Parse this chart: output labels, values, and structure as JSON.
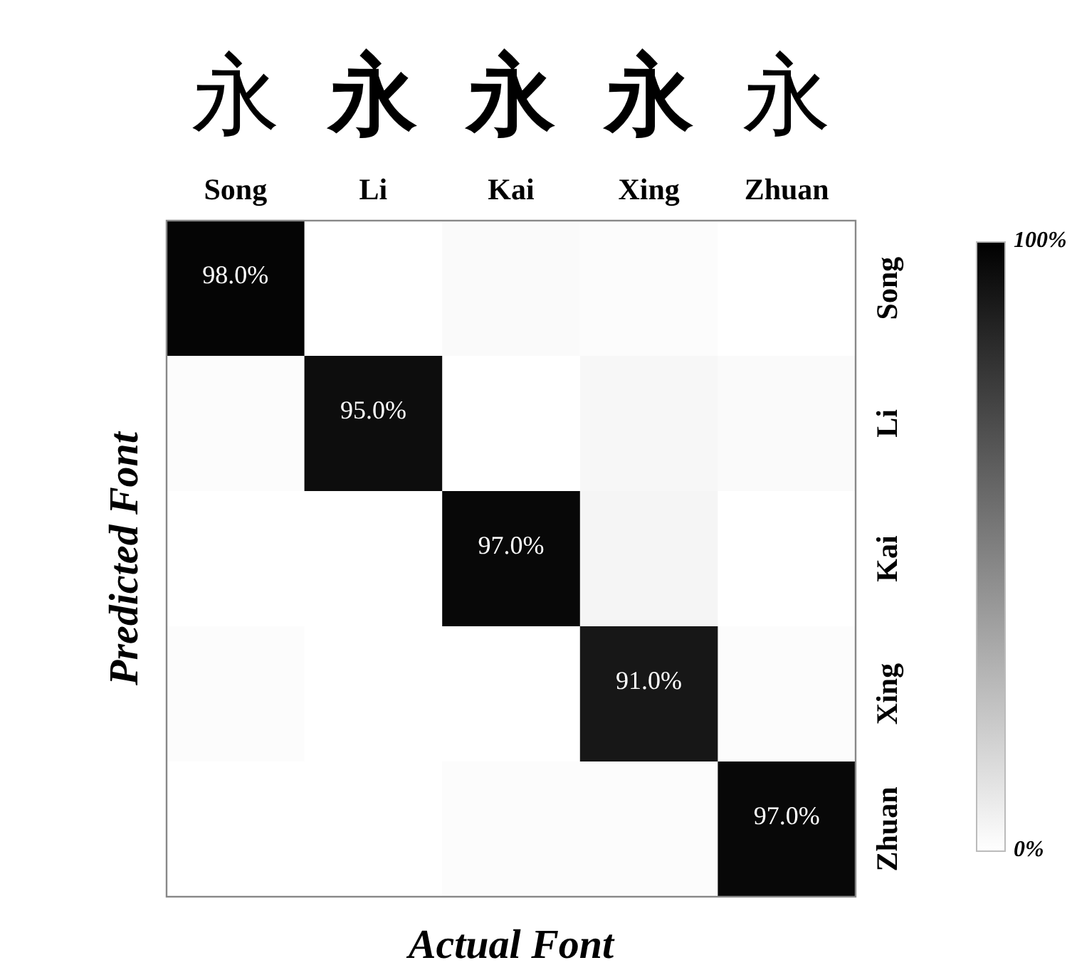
{
  "chart_data": {
    "type": "heatmap",
    "xlabel": "Actual Font",
    "ylabel": "Predicted Font",
    "categories": [
      "Song",
      "Li",
      "Kai",
      "Xing",
      "Zhuan"
    ],
    "y_categories": [
      "Song",
      "Li",
      "Kai",
      "Xing",
      "Zhuan"
    ],
    "cells": [
      [
        98,
        0,
        2,
        1,
        0
      ],
      [
        1,
        95,
        0,
        3,
        2
      ],
      [
        0,
        0,
        97,
        4,
        0
      ],
      [
        1,
        0,
        0,
        91,
        1
      ],
      [
        0,
        0,
        1,
        1,
        97
      ]
    ],
    "cell_labels": [
      [
        "98.0%",
        null,
        null,
        null,
        null
      ],
      [
        null,
        "95.0%",
        null,
        null,
        null
      ],
      [
        null,
        null,
        "97.0%",
        null,
        null
      ],
      [
        null,
        null,
        null,
        "91.0%",
        null
      ],
      [
        null,
        null,
        null,
        null,
        "97.0%"
      ]
    ],
    "clim": [
      0,
      100
    ],
    "cticks": [
      {
        "value": 0,
        "label": "0%"
      },
      {
        "value": 100,
        "label": "100%"
      }
    ],
    "annotations": [
      "永",
      "永",
      "永",
      "永",
      "永"
    ]
  }
}
